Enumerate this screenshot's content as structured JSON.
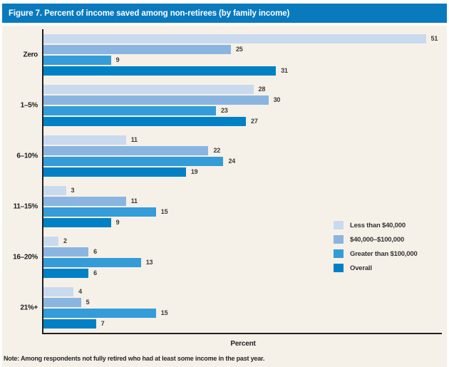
{
  "title_bar": {
    "text": "Figure 7. Percent of income saved among non-retirees (by family income)",
    "bg_color": "#0a7abe",
    "text_color": "#ffffff"
  },
  "panel": {
    "bg_color": "#f6f1e8",
    "axis_color": "#231f20"
  },
  "chart_data": {
    "type": "bar",
    "orientation": "horizontal",
    "title": "Figure 7. Percent of income saved among non-retirees (by family income)",
    "categories": [
      "Zero",
      "1–5%",
      "6–10%",
      "11–15%",
      "16–20%",
      "21%+"
    ],
    "series": [
      {
        "name": "Less than $40,000",
        "color": "#c9daee",
        "values": [
          51,
          28,
          11,
          3,
          2,
          4
        ]
      },
      {
        "name": "$40,000–$100,000",
        "color": "#8ab5e1",
        "values": [
          25,
          30,
          22,
          11,
          6,
          5
        ]
      },
      {
        "name": "Greater than $100,000",
        "color": "#349cd8",
        "values": [
          9,
          23,
          24,
          15,
          13,
          15
        ]
      },
      {
        "name": "Overall",
        "color": "#0081c5",
        "values": [
          31,
          27,
          19,
          9,
          6,
          7
        ]
      }
    ],
    "xlabel": "Percent",
    "ylabel": "",
    "xlim": [
      0,
      53
    ],
    "grid": false,
    "value_labels": true,
    "legend_position": "middle-right"
  },
  "footnote": "Note: Among respondents not fully retired who had at least some income in the past year."
}
